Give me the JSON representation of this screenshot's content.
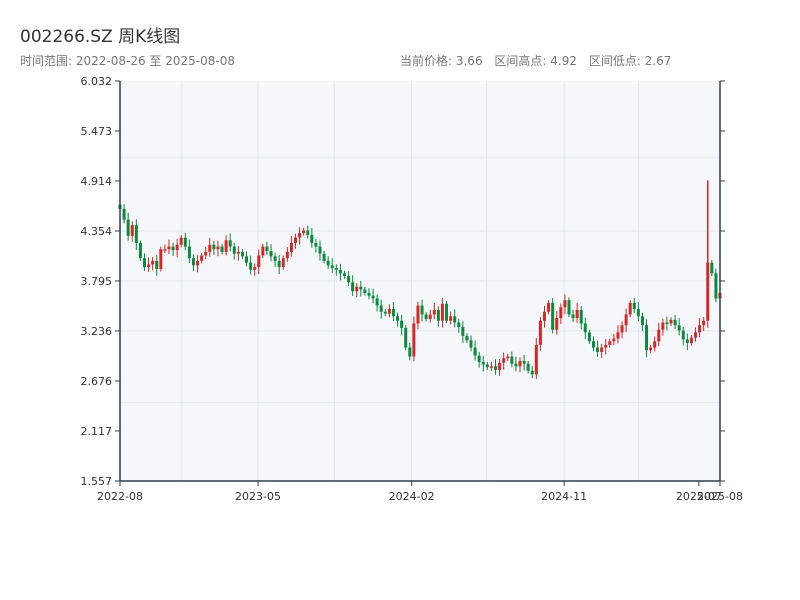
{
  "header": {
    "title": "002266.SZ 周K线图",
    "date_range": "时间范围: 2022-08-26 至 2025-08-08",
    "current_price": "当前价格: 3.66",
    "range_high": "区间高点: 4.92",
    "range_low": "区间低点: 2.67"
  },
  "colors": {
    "up": "#d62728",
    "down": "#0b8a3e",
    "plot_bg": "#f5f7fa",
    "grid": "#e3e7ec",
    "axis": "#2f3e4d"
  },
  "chart_data": {
    "type": "candlestick",
    "title": "002266.SZ 周K线图",
    "ylim": [
      1.557,
      6.032
    ],
    "y_ticks": [
      "1.557",
      "2.117",
      "2.676",
      "3.236",
      "3.795",
      "4.354",
      "4.914",
      "5.473",
      "6.032"
    ],
    "x_ticks": [
      "2022-08",
      "2023-05",
      "2024-02",
      "2024-11",
      "2025-07",
      "2025-08"
    ],
    "grid": true,
    "start_date": "2022-08-26",
    "end_date": "2025-08-08",
    "closes": [
      4.6,
      4.48,
      4.3,
      4.42,
      4.22,
      4.05,
      3.95,
      3.98,
      4.02,
      3.93,
      4.15,
      4.15,
      4.18,
      4.14,
      4.2,
      4.28,
      4.18,
      4.05,
      3.97,
      4.02,
      4.08,
      4.12,
      4.2,
      4.15,
      4.18,
      4.12,
      4.25,
      4.18,
      4.1,
      4.12,
      4.07,
      4.0,
      3.92,
      3.95,
      4.08,
      4.18,
      4.13,
      4.07,
      4.02,
      3.95,
      4.05,
      4.12,
      4.22,
      4.28,
      4.33,
      4.36,
      4.31,
      4.22,
      4.18,
      4.1,
      4.02,
      3.97,
      3.94,
      3.92,
      3.88,
      3.85,
      3.78,
      3.68,
      3.73,
      3.7,
      3.66,
      3.63,
      3.6,
      3.52,
      3.45,
      3.43,
      3.48,
      3.4,
      3.35,
      3.27,
      3.05,
      2.95,
      3.32,
      3.52,
      3.42,
      3.37,
      3.42,
      3.47,
      3.35,
      3.54,
      3.35,
      3.4,
      3.33,
      3.28,
      3.18,
      3.13,
      3.05,
      2.96,
      2.89,
      2.86,
      2.83,
      2.84,
      2.8,
      2.88,
      2.93,
      2.95,
      2.87,
      2.84,
      2.9,
      2.87,
      2.79,
      2.75,
      3.08,
      3.35,
      3.45,
      3.55,
      3.25,
      3.38,
      3.5,
      3.58,
      3.42,
      3.38,
      3.47,
      3.32,
      3.22,
      3.12,
      3.05,
      3.0,
      3.05,
      3.08,
      3.12,
      3.15,
      3.22,
      3.3,
      3.42,
      3.55,
      3.48,
      3.4,
      3.3,
      3.02,
      3.05,
      3.12,
      3.25,
      3.33,
      3.32,
      3.36,
      3.3,
      3.24,
      3.14,
      3.1,
      3.16,
      3.22,
      3.3,
      3.35,
      4.0,
      3.88,
      3.6,
      3.66
    ]
  }
}
